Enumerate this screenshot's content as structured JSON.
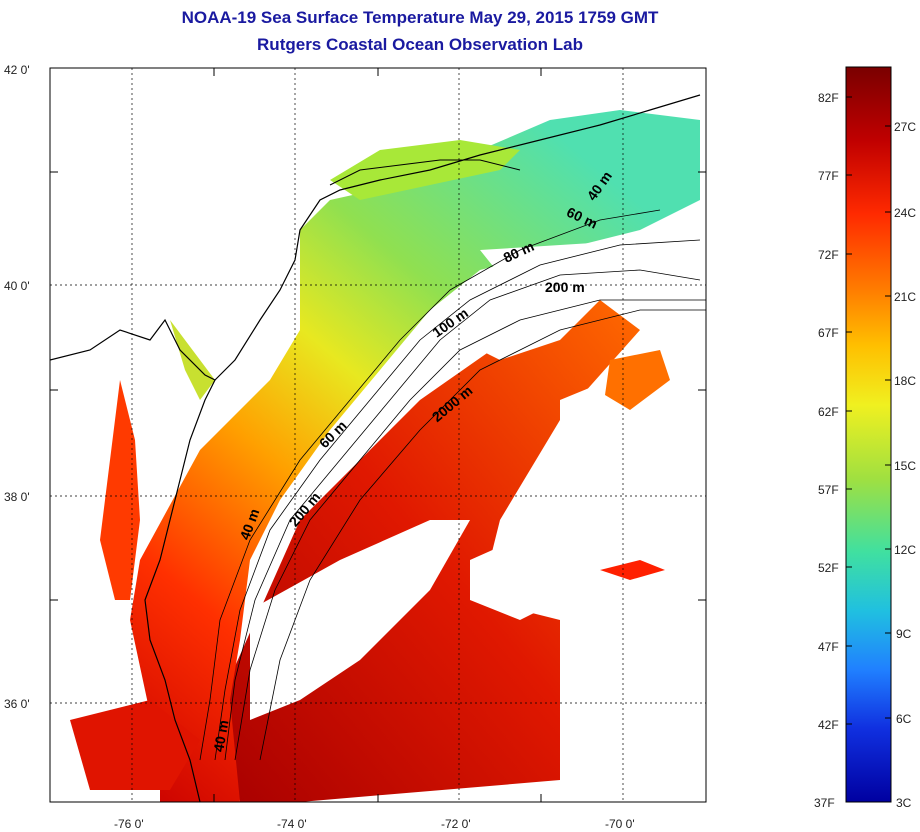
{
  "title_line1": "NOAA-19 Sea Surface Temperature May 29, 2015 1759 GMT",
  "title_line2": "Rutgers Coastal Ocean Observation Lab",
  "map": {
    "lat_ticks": [
      "42 0'",
      "40 0'",
      "38 0'",
      "36 0'"
    ],
    "lon_ticks": [
      "-76 0'",
      "-74 0'",
      "-72 0'",
      "-70 0'"
    ],
    "contour_labels": [
      "40 m",
      "60 m",
      "80 m",
      "200 m",
      "100 m",
      "2000 m",
      "60 m",
      "200 m",
      "40 m",
      "40 m"
    ],
    "land_color": "#ffffff",
    "cloud_color": "#ffffff",
    "coast_color": "#000000"
  },
  "colorbar": {
    "fahrenheit_labels": [
      "82F",
      "77F",
      "72F",
      "67F",
      "62F",
      "57F",
      "52F",
      "47F",
      "42F",
      "37F"
    ],
    "celsius_labels": [
      "27C",
      "24C",
      "21C",
      "18C",
      "15C",
      "12C",
      "9C",
      "6C",
      "3C"
    ],
    "colors": [
      "#7a0000",
      "#c00000",
      "#ff2a00",
      "#ff7a00",
      "#ffc000",
      "#f0f020",
      "#a0e040",
      "#40e0a0",
      "#20c0e0",
      "#2080ff",
      "#1030e0",
      "#0000a0"
    ]
  }
}
